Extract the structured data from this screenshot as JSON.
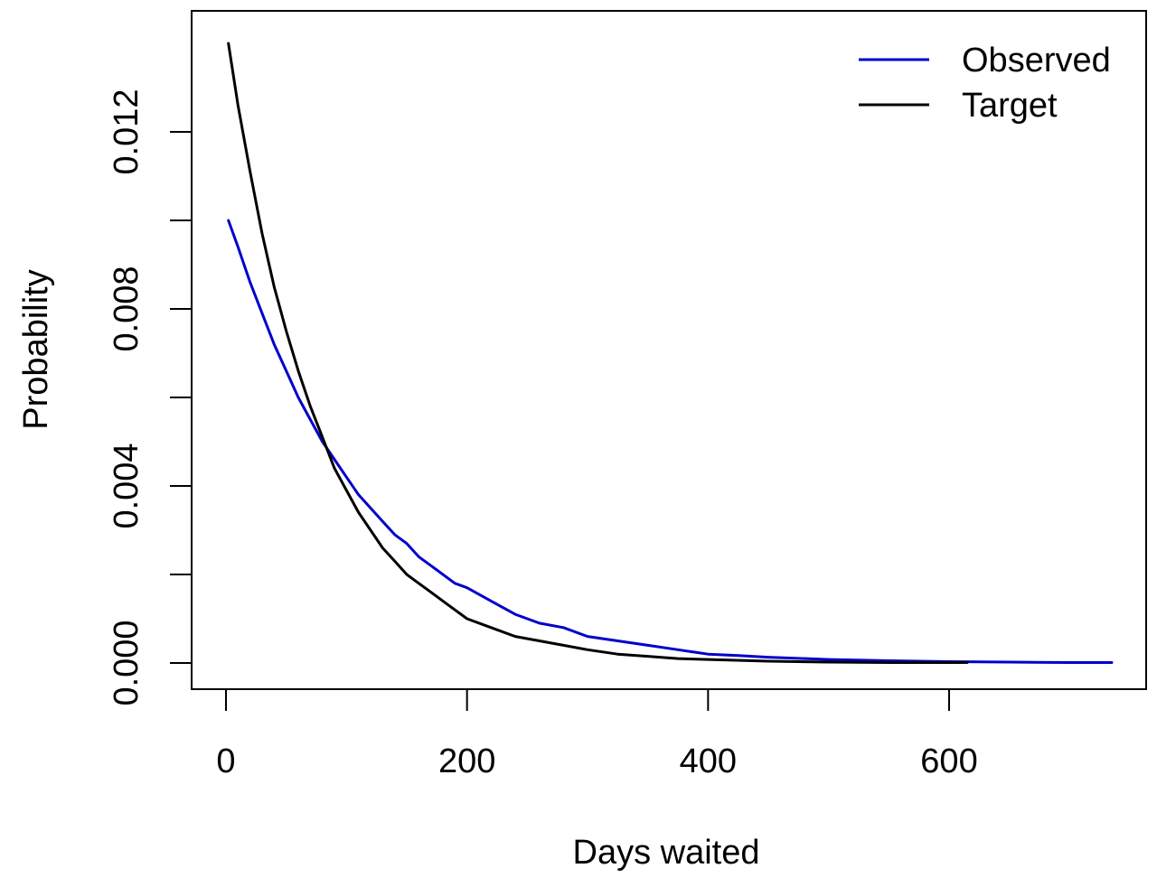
{
  "chart_data": {
    "type": "line",
    "title": "",
    "xlabel": "Days waited",
    "ylabel": "Probability",
    "xlim": [
      0,
      735
    ],
    "ylim": [
      0,
      0.0141
    ],
    "xticks": [
      0,
      200,
      400,
      600
    ],
    "xtick_labels": [
      "0",
      "200",
      "400",
      "600"
    ],
    "yticks": [
      0,
      0.002,
      0.004,
      0.006,
      0.008,
      0.01,
      0.012
    ],
    "ytick_labels": [
      "0.000",
      "",
      "0.004",
      "",
      "0.008",
      "",
      "0.012"
    ],
    "grid": false,
    "legend_position": "top-right",
    "series": [
      {
        "name": "Observed",
        "color": "#0000cc",
        "x": [
          2,
          10,
          20,
          30,
          40,
          50,
          60,
          70,
          80,
          90,
          100,
          110,
          120,
          130,
          140,
          150,
          160,
          170,
          180,
          190,
          200,
          220,
          240,
          260,
          280,
          300,
          325,
          350,
          375,
          400,
          425,
          450,
          500,
          550,
          600,
          650,
          700,
          735
        ],
        "y": [
          0.01,
          0.0094,
          0.0086,
          0.0079,
          0.0072,
          0.0066,
          0.006,
          0.0055,
          0.005,
          0.0046,
          0.0042,
          0.0038,
          0.0035,
          0.0032,
          0.0029,
          0.0027,
          0.0024,
          0.0022,
          0.002,
          0.0018,
          0.0017,
          0.0014,
          0.0011,
          0.0009,
          0.0008,
          0.0006,
          0.0005,
          0.0004,
          0.0003,
          0.0002,
          0.00017,
          0.00013,
          8e-05,
          5e-05,
          3e-05,
          2e-05,
          1e-05,
          1e-05
        ]
      },
      {
        "name": "Target",
        "color": "#000000",
        "x": [
          2,
          10,
          20,
          30,
          40,
          50,
          60,
          70,
          80,
          90,
          100,
          110,
          120,
          130,
          140,
          150,
          160,
          170,
          180,
          190,
          200,
          220,
          240,
          260,
          280,
          300,
          325,
          350,
          375,
          400,
          450,
          500,
          550,
          615
        ],
        "y": [
          0.014,
          0.0126,
          0.0111,
          0.0097,
          0.0085,
          0.0075,
          0.0066,
          0.0058,
          0.0051,
          0.0044,
          0.0039,
          0.0034,
          0.003,
          0.0026,
          0.0023,
          0.002,
          0.0018,
          0.0016,
          0.0014,
          0.0012,
          0.001,
          0.0008,
          0.0006,
          0.0005,
          0.0004,
          0.0003,
          0.0002,
          0.00015,
          0.0001,
          8e-05,
          4e-05,
          2e-05,
          1e-05,
          1e-05
        ]
      }
    ]
  }
}
